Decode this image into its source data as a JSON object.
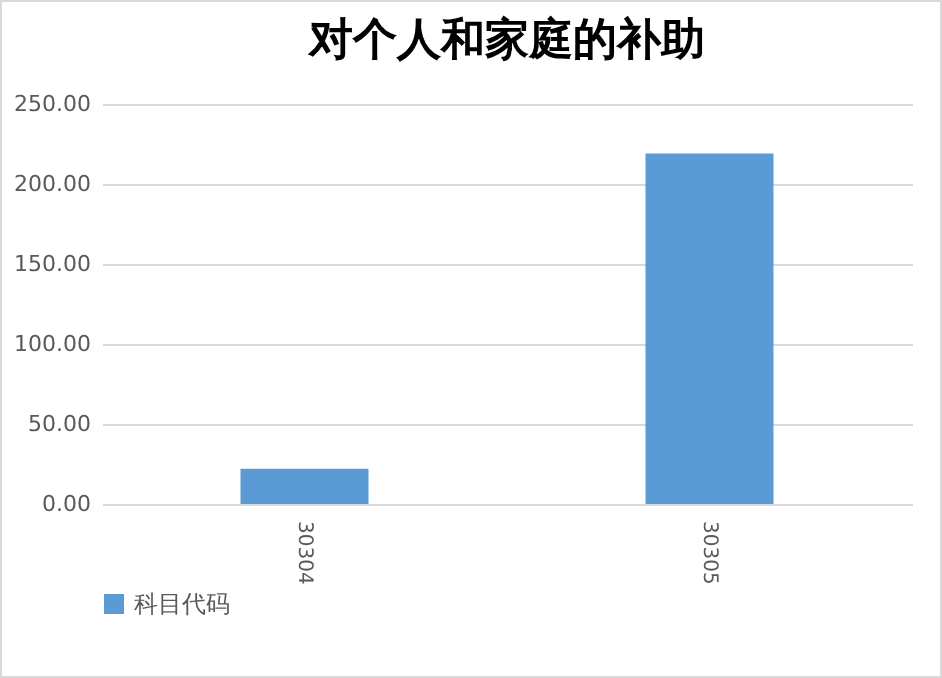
{
  "chart_data": {
    "type": "bar",
    "title": "对个人和家庭的补助",
    "categories": [
      "30304",
      "30305"
    ],
    "series": [
      {
        "name": "科目代码",
        "color": "#5b9bd5",
        "values": [
          22,
          219
        ]
      }
    ],
    "ylim": [
      0,
      250
    ],
    "yticks": [
      {
        "value": 0,
        "label": "0.00"
      },
      {
        "value": 50,
        "label": "50.00"
      },
      {
        "value": 100,
        "label": "100.00"
      },
      {
        "value": 150,
        "label": "150.00"
      },
      {
        "value": 200,
        "label": "200.00"
      },
      {
        "value": 250,
        "label": "250.00"
      }
    ],
    "grid": "y",
    "legend": "bottom"
  }
}
